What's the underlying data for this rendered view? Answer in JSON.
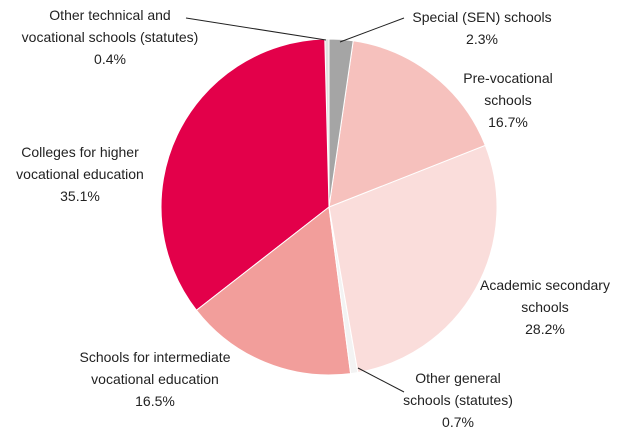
{
  "chart_data": {
    "type": "pie",
    "categories": [
      "Special (SEN) schools",
      "Pre-vocational schools",
      "Academic secondary schools",
      "Other general schools (statutes)",
      "Schools for intermediate vocational education",
      "Colleges for higher vocational education",
      "Other technical and vocational schools (statutes)"
    ],
    "values": [
      2.3,
      16.7,
      28.2,
      0.7,
      16.5,
      35.1,
      0.4
    ],
    "value_labels": [
      "2.3%",
      "16.7%",
      "28.2%",
      "0.7%",
      "16.5%",
      "35.1%",
      "0.4%"
    ],
    "colors": [
      "#a5a5a5",
      "#f6c1bd",
      "#fadddb",
      "#f3f3f3",
      "#f29e9b",
      "#e3004a",
      "#e2e2e2"
    ]
  }
}
